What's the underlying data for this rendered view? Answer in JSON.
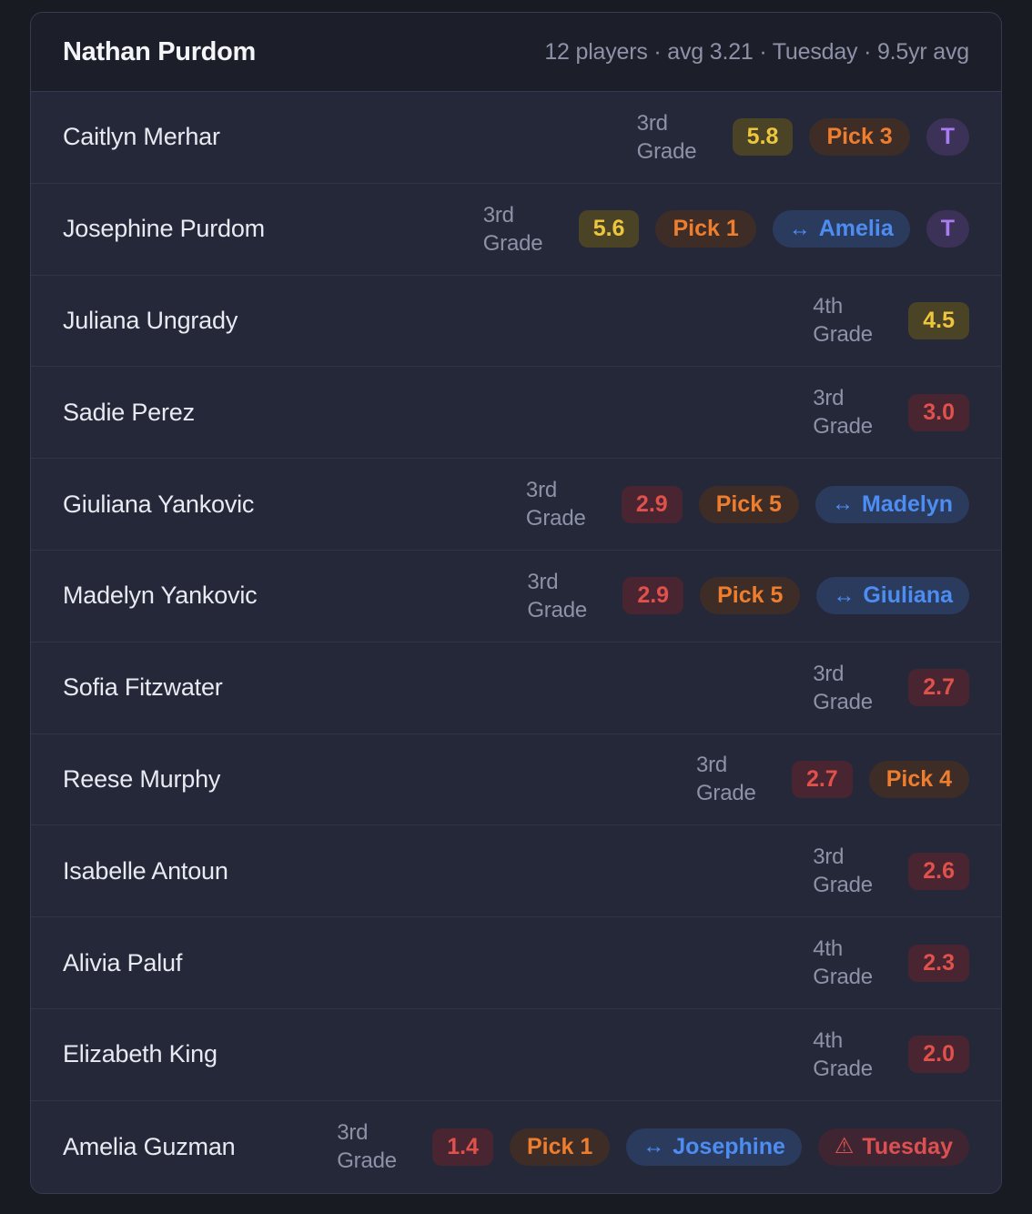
{
  "header": {
    "title": "Nathan Purdom",
    "summary": "12 players · avg 3.21 · Tuesday · 9.5yr avg"
  },
  "icons": {
    "trade_arrows": "↔",
    "warning_triangle": "⚠",
    "t_label": "T"
  },
  "colors": {
    "page_bg": "#191b23",
    "card_bg": "#252838",
    "header_bg": "#1c1f29",
    "score_yellow_text": "#eec63e",
    "score_yellow_bg": "#4a4326",
    "score_red_text": "#e0514c",
    "score_red_bg": "#482530",
    "pick_orange_text": "#ee7e2e",
    "pick_bg": "#3e2d27",
    "trade_blue_text": "#4d8df2",
    "trade_bg": "#2b3b5e",
    "t_purple_text": "#a97df2",
    "t_bg": "#3c3157",
    "warning_red_text": "#dd5052",
    "warning_bg": "#3f2531"
  },
  "players": [
    {
      "name": "Caitlyn Merhar",
      "grade": "3rd Grade",
      "score": "5.8",
      "tier": "yellow",
      "pick": "Pick 3",
      "trade": null,
      "t": "T",
      "warning": null
    },
    {
      "name": "Josephine Purdom",
      "grade": "3rd Grade",
      "score": "5.6",
      "tier": "yellow",
      "pick": "Pick 1",
      "trade": "Amelia",
      "t": "T",
      "warning": null
    },
    {
      "name": "Juliana Ungrady",
      "grade": "4th Grade",
      "score": "4.5",
      "tier": "yellow",
      "pick": null,
      "trade": null,
      "t": null,
      "warning": null
    },
    {
      "name": "Sadie Perez",
      "grade": "3rd Grade",
      "score": "3.0",
      "tier": "red",
      "pick": null,
      "trade": null,
      "t": null,
      "warning": null
    },
    {
      "name": "Giuliana Yankovic",
      "grade": "3rd Grade",
      "score": "2.9",
      "tier": "red",
      "pick": "Pick 5",
      "trade": "Madelyn",
      "t": null,
      "warning": null
    },
    {
      "name": "Madelyn Yankovic",
      "grade": "3rd Grade",
      "score": "2.9",
      "tier": "red",
      "pick": "Pick 5",
      "trade": "Giuliana",
      "t": null,
      "warning": null
    },
    {
      "name": "Sofia Fitzwater",
      "grade": "3rd Grade",
      "score": "2.7",
      "tier": "red",
      "pick": null,
      "trade": null,
      "t": null,
      "warning": null
    },
    {
      "name": "Reese Murphy",
      "grade": "3rd Grade",
      "score": "2.7",
      "tier": "red",
      "pick": "Pick 4",
      "trade": null,
      "t": null,
      "warning": null
    },
    {
      "name": "Isabelle Antoun",
      "grade": "3rd Grade",
      "score": "2.6",
      "tier": "red",
      "pick": null,
      "trade": null,
      "t": null,
      "warning": null
    },
    {
      "name": "Alivia Paluf",
      "grade": "4th Grade",
      "score": "2.3",
      "tier": "red",
      "pick": null,
      "trade": null,
      "t": null,
      "warning": null
    },
    {
      "name": "Elizabeth King",
      "grade": "4th Grade",
      "score": "2.0",
      "tier": "red",
      "pick": null,
      "trade": null,
      "t": null,
      "warning": null
    },
    {
      "name": "Amelia Guzman",
      "grade": "3rd Grade",
      "score": "1.4",
      "tier": "red",
      "pick": "Pick 1",
      "trade": "Josephine",
      "t": null,
      "warning": "Tuesday"
    }
  ]
}
